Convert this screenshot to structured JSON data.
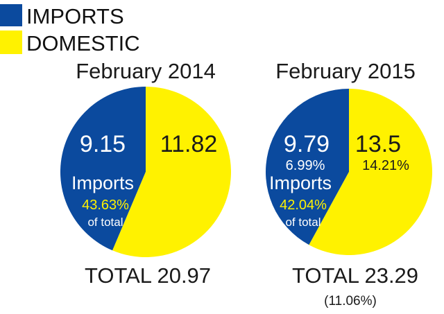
{
  "legend": [
    {
      "label": "IMPORTS",
      "color": "#0b4a9e"
    },
    {
      "label": "DOMESTIC",
      "color": "#fff200"
    }
  ],
  "chart_data": [
    {
      "type": "pie",
      "title": "February 2014",
      "categories": [
        "IMPORTS",
        "DOMESTIC"
      ],
      "values": [
        9.15,
        11.82
      ],
      "colors": [
        "#0b4a9e",
        "#fff200"
      ],
      "imports_label": "Imports",
      "imports_share": "43.63%",
      "imports_share_suffix": "of total",
      "total_label": "TOTAL 20.97"
    },
    {
      "type": "pie",
      "title": "February 2015",
      "categories": [
        "IMPORTS",
        "DOMESTIC"
      ],
      "values": [
        9.79,
        13.5
      ],
      "colors": [
        "#0b4a9e",
        "#fff200"
      ],
      "imports_growth": "6.99%",
      "domestic_growth": "14.21%",
      "imports_label": "Imports",
      "imports_share": "42.04%",
      "imports_share_suffix": "of total",
      "total_label": "TOTAL 23.29",
      "total_growth": "(11.06%)"
    }
  ]
}
